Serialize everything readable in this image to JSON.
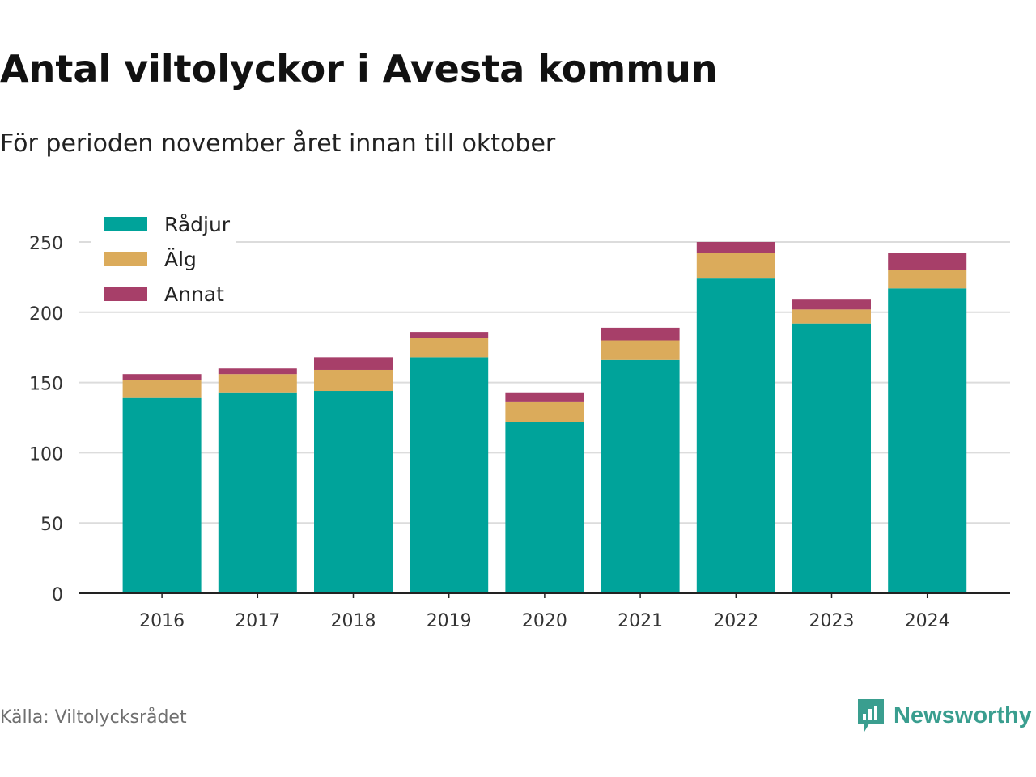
{
  "header": {
    "title": "Antal viltolyckor i Avesta kommun",
    "subtitle": "För perioden november året innan till oktober"
  },
  "footer": {
    "source": "Källa: Viltolycksrådet",
    "brand": "Newsworthy",
    "brand_color": "#3a9e8f"
  },
  "chart_data": {
    "type": "bar",
    "stacked": true,
    "categories": [
      "2016",
      "2017",
      "2018",
      "2019",
      "2020",
      "2021",
      "2022",
      "2023",
      "2024"
    ],
    "series": [
      {
        "name": "Rådjur",
        "color": "#00a39a",
        "values": [
          139,
          143,
          144,
          168,
          122,
          166,
          224,
          192,
          217
        ]
      },
      {
        "name": "Älg",
        "color": "#dbab5b",
        "values": [
          13,
          13,
          15,
          14,
          14,
          14,
          18,
          10,
          13
        ]
      },
      {
        "name": "Annat",
        "color": "#a73f69",
        "values": [
          4,
          4,
          9,
          4,
          7,
          9,
          8,
          7,
          12
        ]
      }
    ],
    "ylim": [
      0,
      250
    ],
    "yticks": [
      "0",
      "50",
      "100",
      "150",
      "200",
      "250"
    ],
    "grid": true,
    "legend_position": "top-left"
  }
}
